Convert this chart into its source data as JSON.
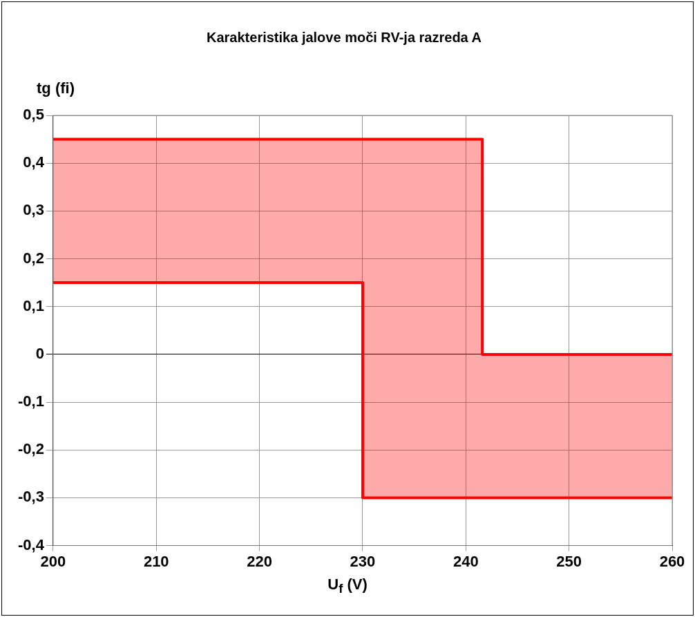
{
  "chart_data": {
    "type": "step",
    "title": "Karakteristika jalove moči RV-ja razreda A",
    "xlabel": "U$_{f}$ (V)",
    "ylabel": "tg (fi)",
    "series": [
      {
        "color": "#ff0000",
        "x": [
          200,
          230,
          241.6,
          260
        ],
        "values": [
          0.45,
          0.45,
          0,
          0
        ],
        "lower": [
          0.15,
          -0.3,
          -0.3,
          -0.3
        ],
        "upper": [
          0.45,
          0.45,
          0,
          0
        ]
      },
      {
        "color": "#ff0000",
        "x": [
          200,
          230,
          241.6,
          260
        ],
        "values": [
          0.15,
          -0.3,
          -0.3,
          -0.3
        ]
      }
    ],
    "xlim": [
      200,
      260
    ],
    "xticks": [
      200,
      210,
      220,
      230,
      240,
      250,
      260
    ],
    "ylim": [
      -0.4,
      0.5
    ],
    "yticks": [
      {
        "value": -0.4,
        "label": "-0,4"
      },
      {
        "value": -0.3,
        "label": "-0,3"
      },
      {
        "value": -0.2,
        "label": "-0,2"
      },
      {
        "value": -0.1,
        "label": "-0,1"
      },
      0,
      {
        "value": 0.1,
        "label": "0,1"
      },
      {
        "value": 0.2,
        "label": "0,2"
      },
      {
        "value": 0.3,
        "label": "0,3"
      },
      {
        "value": 0.4,
        "label": "0,4"
      },
      {
        "value": 0.5,
        "label": "0,5"
      }
    ],
    "grid": true,
    "line_style": "solid"
  }
}
